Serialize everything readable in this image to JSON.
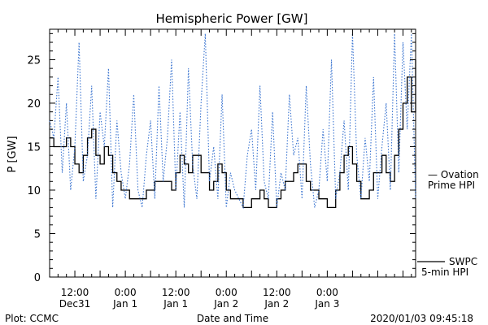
{
  "chart_data": {
    "type": "line",
    "title": "Hemispheric Power [GW]",
    "ylabel": "P [GW]",
    "xlabel": "Date and Time",
    "ylim": [
      0,
      28.5
    ],
    "xlim": [
      0,
      87
    ],
    "yticks": [
      0,
      5,
      10,
      15,
      20,
      25
    ],
    "xticks": [
      {
        "x": 6,
        "l1": "12:00",
        "l2": "Dec31"
      },
      {
        "x": 18,
        "l1": "0:00",
        "l2": "Jan 1"
      },
      {
        "x": 30,
        "l1": "12:00",
        "l2": "Jan 1"
      },
      {
        "x": 42,
        "l1": "0:00",
        "l2": "Jan 2"
      },
      {
        "x": 54,
        "l1": "12:00",
        "l2": "Jan 2"
      },
      {
        "x": 66,
        "l1": "0:00",
        "l2": "Jan 3"
      }
    ],
    "series": [
      {
        "name": "SWPC 5-min HPI",
        "label_lines": [
          "SWPC",
          "5-min HPI"
        ],
        "color": "#000000",
        "style": "solid-step",
        "x": [
          0,
          1,
          2,
          3,
          4,
          5,
          6,
          7,
          8,
          9,
          10,
          11,
          12,
          13,
          14,
          15,
          16,
          17,
          18,
          19,
          20,
          21,
          22,
          23,
          24,
          25,
          26,
          27,
          28,
          29,
          30,
          31,
          32,
          33,
          34,
          35,
          36,
          37,
          38,
          39,
          40,
          41,
          42,
          43,
          44,
          45,
          46,
          47,
          48,
          49,
          50,
          51,
          52,
          53,
          54,
          55,
          56,
          57,
          58,
          59,
          60,
          61,
          62,
          63,
          64,
          65,
          66,
          67,
          68,
          69,
          70,
          71,
          72,
          73,
          74,
          75,
          76,
          77,
          78,
          79,
          80,
          81,
          82,
          83,
          84,
          85,
          86,
          87
        ],
        "y": [
          16,
          15,
          15,
          15,
          16,
          15,
          13,
          12,
          14,
          16,
          17,
          14,
          13,
          15,
          14,
          12,
          11,
          10,
          10,
          9,
          9,
          9,
          9,
          10,
          10,
          11,
          11,
          11,
          11,
          10,
          12,
          14,
          13,
          12,
          14,
          14,
          12,
          12,
          10,
          11,
          13,
          12,
          10,
          9,
          9,
          9,
          8,
          8,
          9,
          9,
          10,
          9,
          8,
          8,
          9,
          10,
          11,
          11,
          12,
          13,
          13,
          11,
          10,
          10,
          9,
          9,
          8,
          8,
          10,
          12,
          14,
          15,
          13,
          11,
          9,
          9,
          10,
          12,
          12,
          14,
          12,
          11,
          14,
          17,
          20,
          23,
          19,
          25
        ]
      },
      {
        "name": "Ovation Prime HPI",
        "label_lines": [
          "— Ovation",
          "Prime HPI"
        ],
        "color": "#3a74d0",
        "style": "dotted",
        "x": [
          0,
          1,
          2,
          3,
          4,
          5,
          6,
          7,
          8,
          9,
          10,
          11,
          12,
          13,
          14,
          15,
          16,
          17,
          18,
          19,
          20,
          21,
          22,
          23,
          24,
          25,
          26,
          27,
          28,
          29,
          30,
          31,
          32,
          33,
          34,
          35,
          36,
          37,
          38,
          39,
          40,
          41,
          42,
          43,
          44,
          45,
          46,
          47,
          48,
          49,
          50,
          51,
          52,
          53,
          54,
          55,
          56,
          57,
          58,
          59,
          60,
          61,
          62,
          63,
          64,
          65,
          66,
          67,
          68,
          69,
          70,
          71,
          72,
          73,
          74,
          75,
          76,
          77,
          78,
          79,
          80,
          81,
          82,
          83,
          84,
          85,
          86,
          87
        ],
        "y": [
          18,
          16,
          23,
          12,
          20,
          10,
          15,
          27,
          11,
          14,
          22,
          9,
          19,
          15,
          24,
          8,
          18,
          12,
          9,
          13,
          21,
          10,
          8,
          14,
          18,
          9,
          22,
          11,
          16,
          25,
          10,
          19,
          8,
          24,
          13,
          9,
          20,
          28,
          11,
          15,
          9,
          21,
          8,
          12,
          10,
          9,
          8,
          14,
          17,
          10,
          22,
          11,
          9,
          19,
          8,
          12,
          10,
          21,
          14,
          16,
          9,
          22,
          13,
          8,
          10,
          17,
          11,
          25,
          9,
          12,
          18,
          10,
          28,
          14,
          9,
          16,
          11,
          23,
          9,
          15,
          20,
          10,
          28,
          12,
          27,
          17,
          28,
          9
        ]
      }
    ],
    "footer": {
      "left": "Plot: CCMC",
      "center": "Date and Time",
      "right": "2020/01/03 09:45:18"
    }
  }
}
